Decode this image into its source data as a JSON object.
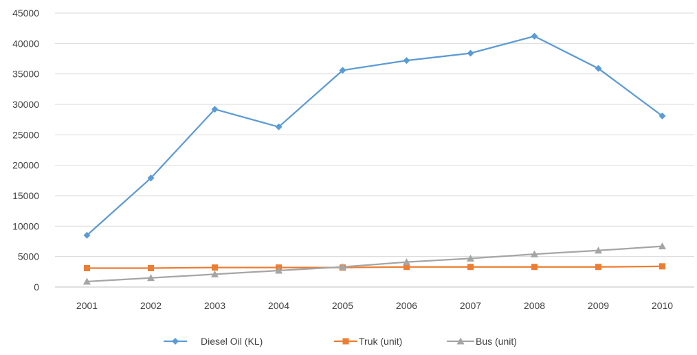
{
  "chart_data": {
    "type": "line",
    "title": "",
    "xlabel": "",
    "ylabel": "",
    "categories": [
      "2001",
      "2002",
      "2003",
      "2004",
      "2005",
      "2006",
      "2007",
      "2008",
      "2009",
      "2010"
    ],
    "ylim": [
      0,
      45000
    ],
    "yticks": [
      "0",
      "5000",
      "10000",
      "15000",
      "20000",
      "25000",
      "30000",
      "35000",
      "40000",
      "45000"
    ],
    "grid": "horizontal",
    "legend_position": "bottom",
    "series": [
      {
        "name": "Diesel Oil (KL)",
        "color": "#5b9bd5",
        "marker": "diamond",
        "values": [
          8500,
          17900,
          29200,
          26300,
          35600,
          37200,
          38400,
          41200,
          35900,
          28100
        ]
      },
      {
        "name": "Truk (unit)",
        "color": "#ed7d31",
        "marker": "square",
        "values": [
          3100,
          3100,
          3200,
          3200,
          3200,
          3300,
          3300,
          3300,
          3300,
          3400
        ]
      },
      {
        "name": "Bus (unit)",
        "color": "#a5a5a5",
        "marker": "triangle",
        "values": [
          900,
          1500,
          2100,
          2700,
          3300,
          4100,
          4700,
          5400,
          6000,
          6700
        ]
      }
    ]
  }
}
